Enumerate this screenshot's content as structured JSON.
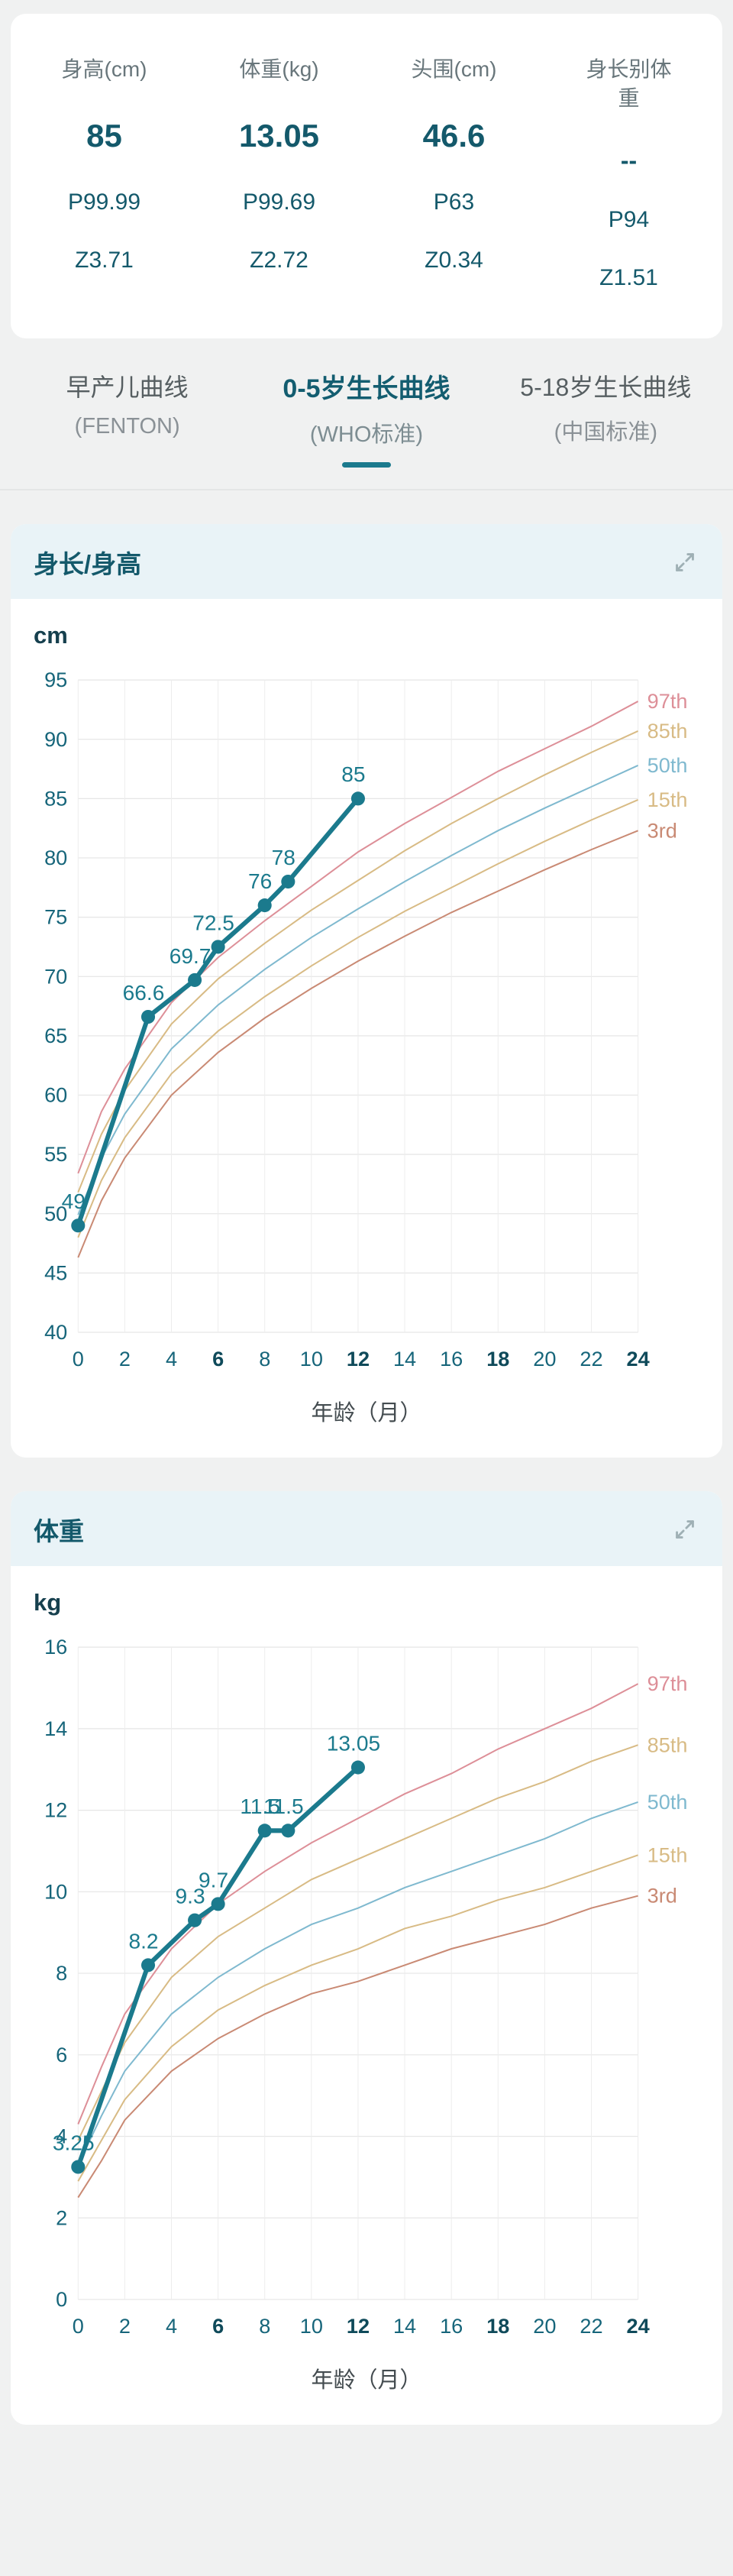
{
  "colors": {
    "accent": "#1b7a8d",
    "value_text": "#14596b",
    "header_bg": "#e9f3f7",
    "p97": "#dd8f98",
    "p85": "#d8bb85",
    "p50": "#7fb9cf",
    "p15": "#d8bb85",
    "p3": "#c98a74"
  },
  "icons": {
    "expand": "expand-arrows"
  },
  "stats": {
    "columns": [
      {
        "label": "身高(cm)",
        "value": "85",
        "p": "P99.99",
        "z": "Z3.71"
      },
      {
        "label": "体重(kg)",
        "value": "13.05",
        "p": "P99.69",
        "z": "Z2.72"
      },
      {
        "label": "头围(cm)",
        "value": "46.6",
        "p": "P63",
        "z": "Z0.34"
      },
      {
        "label": "身长别体重",
        "value": "--",
        "p": "P94",
        "z": "Z1.51"
      }
    ]
  },
  "tabs": [
    {
      "label": "早产儿曲线",
      "sub": "(FENTON)"
    },
    {
      "label": "0-5岁生长曲线",
      "sub": "(WHO标准)"
    },
    {
      "label": "5-18岁生长曲线",
      "sub": "(中国标准)"
    }
  ],
  "active_tab": 1,
  "chart_data": [
    {
      "type": "line",
      "title": "身长/身高",
      "unit": "cm",
      "xlabel": "年龄（月）",
      "xlim": [
        0,
        24
      ],
      "xstep": 2,
      "bold_xticks": [
        6,
        12,
        18,
        24
      ],
      "ylim": [
        40,
        95
      ],
      "ystep": 5,
      "grid": true,
      "legend_position": "right",
      "x": [
        0,
        1,
        2,
        4,
        6,
        8,
        10,
        12,
        14,
        16,
        18,
        20,
        22,
        24
      ],
      "series": [
        {
          "name": "97th",
          "color_key": "p97",
          "y": [
            53.4,
            58.6,
            62.2,
            67.8,
            71.6,
            74.7,
            77.6,
            80.5,
            82.9,
            85.1,
            87.3,
            89.2,
            91.1,
            93.2
          ]
        },
        {
          "name": "85th",
          "color_key": "p85",
          "y": [
            51.8,
            56.7,
            60.4,
            66.0,
            69.8,
            72.8,
            75.6,
            78.1,
            80.6,
            82.9,
            85.0,
            87.0,
            88.9,
            90.7
          ]
        },
        {
          "name": "50th",
          "color_key": "p50",
          "y": [
            49.9,
            54.7,
            58.4,
            63.9,
            67.6,
            70.6,
            73.3,
            75.7,
            78.0,
            80.2,
            82.3,
            84.2,
            86.0,
            87.8
          ]
        },
        {
          "name": "15th",
          "color_key": "p15",
          "y": [
            48.0,
            52.8,
            56.4,
            61.8,
            65.4,
            68.3,
            70.9,
            73.3,
            75.5,
            77.5,
            79.5,
            81.4,
            83.2,
            84.9
          ]
        },
        {
          "name": "3rd",
          "color_key": "p3",
          "y": [
            46.3,
            51.1,
            54.7,
            60.0,
            63.6,
            66.5,
            69.0,
            71.3,
            73.4,
            75.4,
            77.2,
            79.0,
            80.7,
            82.3
          ]
        }
      ],
      "patient": {
        "x": [
          0,
          3,
          5,
          6,
          8,
          9,
          12
        ],
        "y": [
          49,
          66.6,
          69.7,
          72.5,
          76,
          78,
          85
        ],
        "labels": [
          "49",
          "66.6",
          "69.7",
          "72.5",
          "76",
          "78",
          "85"
        ]
      }
    },
    {
      "type": "line",
      "title": "体重",
      "unit": "kg",
      "xlabel": "年龄（月）",
      "xlim": [
        0,
        24
      ],
      "xstep": 2,
      "bold_xticks": [
        6,
        12,
        18,
        24
      ],
      "ylim": [
        0,
        16
      ],
      "ystep": 2,
      "grid": true,
      "legend_position": "right",
      "x": [
        0,
        1,
        2,
        4,
        6,
        8,
        10,
        12,
        14,
        16,
        18,
        20,
        22,
        24
      ],
      "series": [
        {
          "name": "97th",
          "color_key": "p97",
          "y": [
            4.3,
            5.7,
            7.0,
            8.6,
            9.7,
            10.5,
            11.2,
            11.8,
            12.4,
            12.9,
            13.5,
            14.0,
            14.5,
            15.1
          ]
        },
        {
          "name": "85th",
          "color_key": "p85",
          "y": [
            3.9,
            5.1,
            6.3,
            7.9,
            8.9,
            9.6,
            10.3,
            10.8,
            11.3,
            11.8,
            12.3,
            12.7,
            13.2,
            13.6
          ]
        },
        {
          "name": "50th",
          "color_key": "p50",
          "y": [
            3.3,
            4.5,
            5.6,
            7.0,
            7.9,
            8.6,
            9.2,
            9.6,
            10.1,
            10.5,
            10.9,
            11.3,
            11.8,
            12.2
          ]
        },
        {
          "name": "15th",
          "color_key": "p15",
          "y": [
            2.9,
            3.9,
            4.9,
            6.2,
            7.1,
            7.7,
            8.2,
            8.6,
            9.1,
            9.4,
            9.8,
            10.1,
            10.5,
            10.9
          ]
        },
        {
          "name": "3rd",
          "color_key": "p3",
          "y": [
            2.5,
            3.4,
            4.4,
            5.6,
            6.4,
            7.0,
            7.5,
            7.8,
            8.2,
            8.6,
            8.9,
            9.2,
            9.6,
            9.9
          ]
        }
      ],
      "patient": {
        "x": [
          0,
          3,
          5,
          6,
          8,
          9,
          12
        ],
        "y": [
          3.25,
          8.2,
          9.3,
          9.7,
          11.5,
          11.5,
          13.05
        ],
        "labels": [
          "3.25",
          "8.2",
          "9.3",
          "9.7",
          "11.5",
          "11.5",
          "13.05"
        ]
      }
    }
  ]
}
